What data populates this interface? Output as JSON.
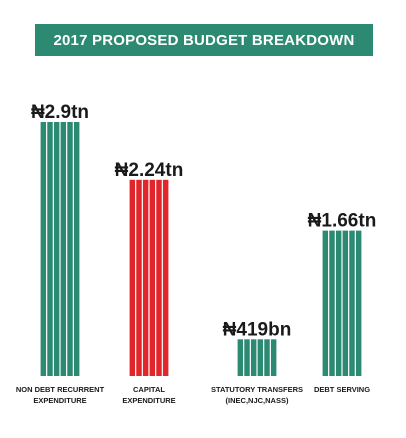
{
  "chart_data": {
    "type": "bar",
    "title": "2017 PROPOSED BUDGET BREAKDOWN",
    "unit": "trillion naira",
    "categories": [
      [
        "NON DEBT RECURRENT",
        "EXPENDITURE"
      ],
      [
        "CAPITAL",
        "EXPENDITURE"
      ],
      [
        "STATUTORY TRANSFERS",
        "(INEC,NJC,NASS)"
      ],
      [
        "DEBT SERVING"
      ]
    ],
    "values": [
      2.9,
      2.24,
      0.419,
      1.66
    ],
    "data_labels": [
      "₦2.9tn",
      "₦2.24tn",
      "₦419bn",
      "₦1.66tn"
    ],
    "colors": [
      "#2d8a72",
      "#e0262b",
      "#2d8a72",
      "#2d8a72"
    ],
    "ylim": [
      0,
      2.9
    ],
    "grid": false,
    "legend": "none"
  }
}
